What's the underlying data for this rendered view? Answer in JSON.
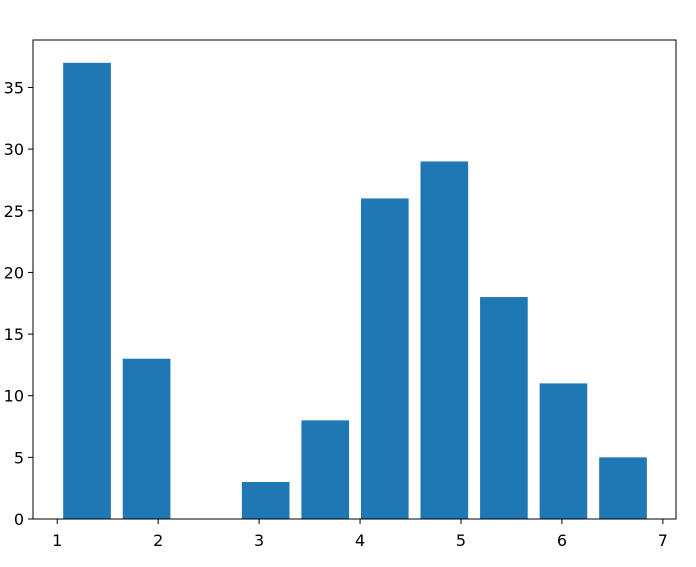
{
  "chart_data": {
    "type": "histogram",
    "bins": [
      1,
      1.59,
      2.18,
      2.77,
      3.36,
      3.95,
      4.54,
      5.13,
      5.72,
      6.31,
      6.9
    ],
    "values": [
      37,
      13,
      0,
      3,
      8,
      26,
      29,
      18,
      11,
      5
    ],
    "color": "#1f77b4",
    "xlim": [
      0.76,
      7.13
    ],
    "xticks": [
      1,
      2,
      3,
      4,
      5,
      6,
      7
    ],
    "ylim": [
      0,
      38.85
    ],
    "yticks": [
      0,
      5,
      10,
      15,
      20,
      25,
      30,
      35
    ]
  }
}
